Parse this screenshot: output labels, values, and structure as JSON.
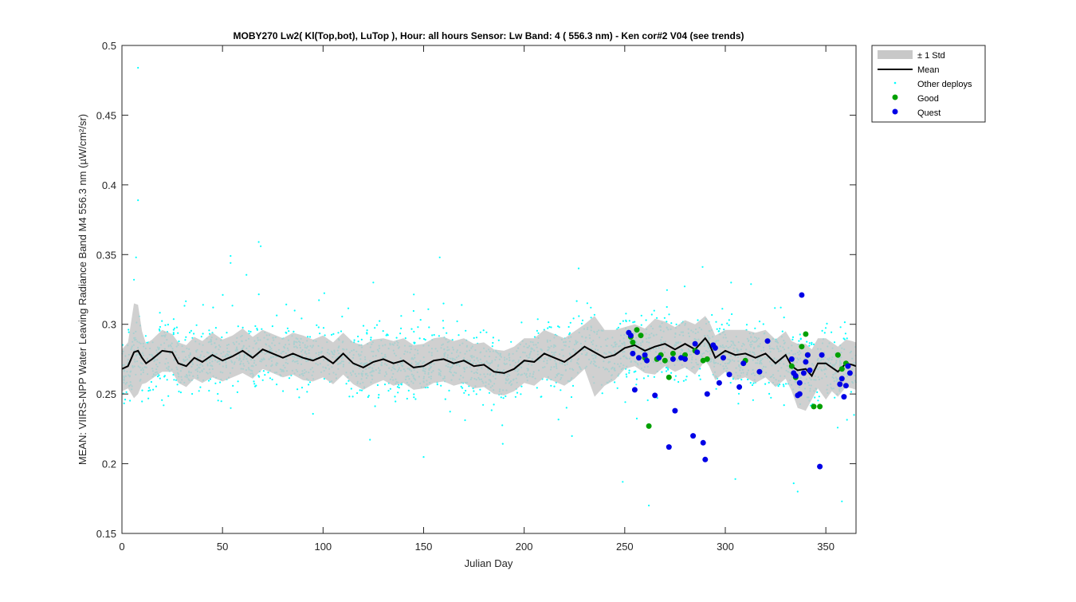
{
  "chart_data": {
    "type": "scatter",
    "title": "MOBY270   Lw2( Kl(Top,bot), LuTop ),   Hour: all hours  Sensor: Lw Band: 4 ( 556.3 nm)  - Ken cor#2 V04 (see trends)",
    "xlabel": "Julian Day",
    "ylabel": "MEAN: VIIRS-NPP Water Leaving Radiance Band M4 556.3 nm (µW/cm²/sr)",
    "xlim": [
      0,
      365
    ],
    "ylim": [
      0.15,
      0.5
    ],
    "xticks": [
      0,
      50,
      100,
      150,
      200,
      250,
      300,
      350
    ],
    "xtick_labels": [
      "0",
      "50",
      "100",
      "150",
      "200",
      "250",
      "300",
      "350"
    ],
    "yticks": [
      0.15,
      0.2,
      0.25,
      0.3,
      0.35,
      0.4,
      0.45,
      0.5
    ],
    "ytick_labels": [
      "0.15",
      "0.2",
      "0.25",
      "0.3",
      "0.35",
      "0.4",
      "0.45",
      "0.5"
    ],
    "grid": false,
    "legend_position": "outside-top-right",
    "legend": [
      "± 1 Std",
      "Mean",
      "Other deploys",
      "Good",
      "Quest"
    ],
    "colors": {
      "std_band": "#c8c8c8",
      "mean": "#000000",
      "other": "#00ffff",
      "good": "#00a000",
      "quest": "#0000e6"
    },
    "series": [
      {
        "name": "Mean",
        "kind": "line",
        "x": [
          0,
          3,
          6,
          8,
          10,
          12,
          15,
          20,
          25,
          28,
          32,
          36,
          40,
          45,
          50,
          55,
          60,
          65,
          70,
          75,
          80,
          85,
          90,
          95,
          100,
          105,
          110,
          115,
          120,
          125,
          130,
          135,
          140,
          145,
          150,
          155,
          160,
          165,
          170,
          175,
          180,
          185,
          190,
          195,
          200,
          205,
          210,
          215,
          220,
          225,
          230,
          235,
          240,
          245,
          250,
          255,
          260,
          265,
          270,
          275,
          280,
          285,
          290,
          292,
          295,
          300,
          305,
          310,
          315,
          320,
          325,
          330,
          333,
          336,
          340,
          343,
          346,
          350,
          353,
          356,
          360,
          363,
          365
        ],
        "y": [
          0.268,
          0.27,
          0.28,
          0.281,
          0.276,
          0.272,
          0.275,
          0.281,
          0.28,
          0.272,
          0.27,
          0.276,
          0.273,
          0.278,
          0.274,
          0.277,
          0.281,
          0.276,
          0.282,
          0.279,
          0.276,
          0.279,
          0.276,
          0.274,
          0.277,
          0.272,
          0.279,
          0.272,
          0.269,
          0.273,
          0.275,
          0.272,
          0.274,
          0.269,
          0.27,
          0.274,
          0.275,
          0.272,
          0.274,
          0.27,
          0.271,
          0.266,
          0.265,
          0.268,
          0.274,
          0.273,
          0.279,
          0.276,
          0.273,
          0.278,
          0.284,
          0.28,
          0.276,
          0.278,
          0.283,
          0.285,
          0.281,
          0.284,
          0.286,
          0.282,
          0.286,
          0.282,
          0.29,
          0.286,
          0.276,
          0.281,
          0.278,
          0.279,
          0.276,
          0.279,
          0.272,
          0.278,
          0.27,
          0.267,
          0.268,
          0.263,
          0.272,
          0.272,
          0.269,
          0.266,
          0.272,
          0.271,
          0.27
        ]
      },
      {
        "name": "± 1 Std",
        "kind": "band",
        "x": [
          0,
          3,
          6,
          8,
          10,
          12,
          15,
          20,
          25,
          28,
          32,
          36,
          40,
          45,
          50,
          55,
          60,
          65,
          70,
          75,
          80,
          85,
          90,
          95,
          100,
          105,
          110,
          115,
          120,
          125,
          130,
          135,
          140,
          145,
          150,
          155,
          160,
          165,
          170,
          175,
          180,
          185,
          190,
          195,
          200,
          205,
          210,
          215,
          220,
          225,
          230,
          235,
          240,
          245,
          250,
          255,
          260,
          265,
          270,
          275,
          280,
          285,
          290,
          292,
          295,
          300,
          305,
          310,
          315,
          320,
          325,
          330,
          333,
          336,
          340,
          343,
          346,
          350,
          353,
          356,
          360,
          363,
          365
        ],
        "upper": [
          0.282,
          0.287,
          0.315,
          0.314,
          0.295,
          0.286,
          0.289,
          0.296,
          0.293,
          0.287,
          0.285,
          0.291,
          0.288,
          0.294,
          0.289,
          0.292,
          0.297,
          0.291,
          0.296,
          0.293,
          0.29,
          0.294,
          0.292,
          0.289,
          0.292,
          0.287,
          0.294,
          0.287,
          0.285,
          0.289,
          0.29,
          0.288,
          0.29,
          0.285,
          0.286,
          0.29,
          0.291,
          0.288,
          0.29,
          0.286,
          0.287,
          0.282,
          0.281,
          0.284,
          0.29,
          0.29,
          0.296,
          0.293,
          0.29,
          0.295,
          0.3,
          0.306,
          0.296,
          0.296,
          0.298,
          0.3,
          0.297,
          0.304,
          0.302,
          0.298,
          0.303,
          0.3,
          0.306,
          0.302,
          0.292,
          0.296,
          0.296,
          0.296,
          0.294,
          0.296,
          0.289,
          0.295,
          0.288,
          0.286,
          0.286,
          0.282,
          0.29,
          0.29,
          0.287,
          0.284,
          0.289,
          0.288,
          0.287
        ],
        "lower": [
          0.252,
          0.254,
          0.247,
          0.25,
          0.257,
          0.258,
          0.261,
          0.266,
          0.266,
          0.258,
          0.255,
          0.261,
          0.258,
          0.262,
          0.259,
          0.262,
          0.265,
          0.261,
          0.268,
          0.265,
          0.262,
          0.264,
          0.26,
          0.259,
          0.262,
          0.257,
          0.264,
          0.257,
          0.253,
          0.257,
          0.26,
          0.256,
          0.258,
          0.253,
          0.254,
          0.258,
          0.259,
          0.256,
          0.258,
          0.254,
          0.255,
          0.25,
          0.249,
          0.252,
          0.258,
          0.256,
          0.262,
          0.259,
          0.256,
          0.261,
          0.268,
          0.248,
          0.256,
          0.26,
          0.268,
          0.27,
          0.265,
          0.264,
          0.27,
          0.266,
          0.269,
          0.264,
          0.274,
          0.27,
          0.26,
          0.266,
          0.26,
          0.262,
          0.258,
          0.262,
          0.255,
          0.261,
          0.252,
          0.24,
          0.238,
          0.246,
          0.254,
          0.246,
          0.252,
          0.248,
          0.255,
          0.254,
          0.253
        ]
      },
      {
        "name": "Good",
        "kind": "points",
        "x": [
          253,
          254,
          256,
          258,
          260,
          262,
          266,
          268,
          270,
          272,
          274,
          280,
          285,
          289,
          291,
          310,
          333,
          335,
          338,
          340,
          341,
          344,
          347,
          356,
          358,
          360
        ],
        "y": [
          0.291,
          0.287,
          0.296,
          0.292,
          0.276,
          0.227,
          0.275,
          0.278,
          0.274,
          0.262,
          0.279,
          0.278,
          0.281,
          0.274,
          0.275,
          0.274,
          0.27,
          0.262,
          0.284,
          0.293,
          0.278,
          0.241,
          0.241,
          0.278,
          0.268,
          0.272
        ]
      },
      {
        "name": "Quest",
        "kind": "points",
        "x": [
          252,
          253,
          254,
          255,
          257,
          260,
          261,
          265,
          267,
          272,
          274,
          275,
          278,
          280,
          284,
          285,
          286,
          289,
          290,
          291,
          294,
          295,
          297,
          299,
          302,
          307,
          309,
          317,
          321,
          333,
          334,
          335,
          336,
          337,
          337,
          338,
          339,
          340,
          341,
          342,
          347,
          348,
          357,
          358,
          359,
          360,
          361,
          362
        ],
        "y": [
          0.294,
          0.292,
          0.279,
          0.253,
          0.276,
          0.278,
          0.274,
          0.249,
          0.276,
          0.212,
          0.275,
          0.238,
          0.276,
          0.275,
          0.22,
          0.286,
          0.28,
          0.215,
          0.203,
          0.25,
          0.285,
          0.283,
          0.258,
          0.276,
          0.264,
          0.255,
          0.272,
          0.266,
          0.288,
          0.275,
          0.265,
          0.263,
          0.249,
          0.25,
          0.258,
          0.321,
          0.265,
          0.273,
          0.278,
          0.267,
          0.198,
          0.278,
          0.257,
          0.261,
          0.248,
          0.256,
          0.27,
          0.265
        ]
      },
      {
        "name": "Other deploys",
        "kind": "scatter",
        "n_points": 2600,
        "noted_outliers": [
          [
            8,
            0.484
          ],
          [
            8,
            0.389
          ],
          [
            7,
            0.348
          ],
          [
            68,
            0.359
          ],
          [
            69,
            0.356
          ],
          [
            54,
            0.349
          ],
          [
            54,
            0.344
          ],
          [
            158,
            0.348
          ],
          [
            6,
            0.332
          ],
          [
            125,
            0.33
          ],
          [
            305,
            0.189
          ],
          [
            336,
            0.18
          ],
          [
            334,
            0.186
          ],
          [
            262,
            0.17
          ],
          [
            249,
            0.187
          ],
          [
            358,
            0.173
          ],
          [
            364,
            0.235
          ]
        ]
      }
    ]
  }
}
